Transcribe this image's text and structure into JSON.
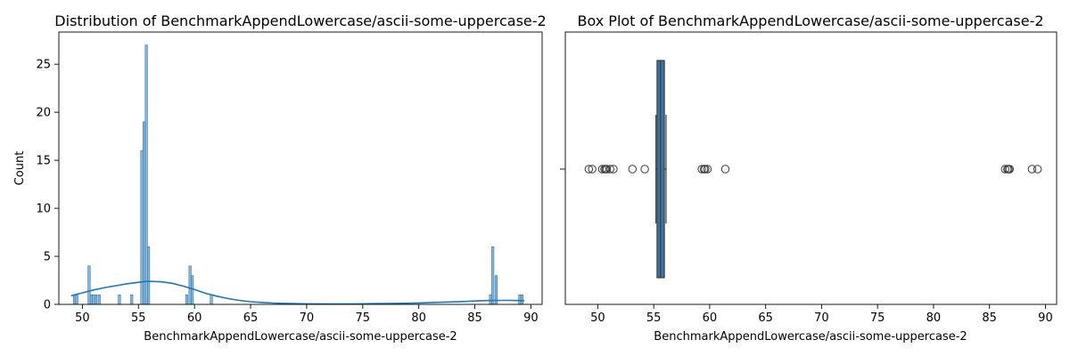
{
  "colors": {
    "hist_fill": "#80a9cc",
    "hist_edge": "#1f77b4",
    "kde_line": "#1f77b4",
    "box_fill": "#3a75a6",
    "box_edge": "#3b3b3b",
    "flier_edge": "#3b3b3b"
  },
  "chart_data": [
    {
      "type": "histogram",
      "title": "Distribution of BenchmarkAppendLowercase/ascii-some-uppercase-2",
      "xlabel": "BenchmarkAppendLowercase/ascii-some-uppercase-2",
      "ylabel": "Count",
      "xlim": [
        47.9,
        91.0
      ],
      "ylim": [
        0,
        28.35
      ],
      "xticks": [
        "50",
        "55",
        "60",
        "65",
        "70",
        "75",
        "80",
        "85",
        "90"
      ],
      "yticks": [
        "0",
        "5",
        "10",
        "15",
        "20",
        "25"
      ],
      "bin_width": 0.2,
      "bins": [
        {
          "x": 49.2,
          "count": 1
        },
        {
          "x": 49.4,
          "count": 1
        },
        {
          "x": 50.5,
          "count": 4
        },
        {
          "x": 50.7,
          "count": 1
        },
        {
          "x": 50.9,
          "count": 1
        },
        {
          "x": 51.1,
          "count": 1
        },
        {
          "x": 51.4,
          "count": 1
        },
        {
          "x": 53.2,
          "count": 1
        },
        {
          "x": 54.3,
          "count": 1
        },
        {
          "x": 55.2,
          "count": 16
        },
        {
          "x": 55.4,
          "count": 19
        },
        {
          "x": 55.6,
          "count": 27
        },
        {
          "x": 55.8,
          "count": 6
        },
        {
          "x": 59.2,
          "count": 1
        },
        {
          "x": 59.5,
          "count": 4
        },
        {
          "x": 59.7,
          "count": 3
        },
        {
          "x": 61.4,
          "count": 1
        },
        {
          "x": 86.3,
          "count": 1
        },
        {
          "x": 86.5,
          "count": 6
        },
        {
          "x": 86.8,
          "count": 3
        },
        {
          "x": 88.9,
          "count": 1
        },
        {
          "x": 89.1,
          "count": 1
        }
      ],
      "kde": {
        "x": [
          49.0,
          50,
          51,
          52,
          53,
          54,
          55,
          55.8,
          57,
          58,
          59,
          60,
          61,
          62,
          63,
          64,
          65,
          66,
          67,
          68,
          70,
          72,
          74,
          76,
          78,
          80,
          82,
          84,
          85,
          86,
          87,
          88,
          89,
          89.4
        ],
        "y": [
          0.9,
          1.2,
          1.5,
          1.75,
          1.95,
          2.15,
          2.3,
          2.4,
          2.35,
          2.2,
          1.9,
          1.55,
          1.15,
          0.85,
          0.6,
          0.42,
          0.28,
          0.2,
          0.14,
          0.1,
          0.06,
          0.05,
          0.05,
          0.07,
          0.1,
          0.15,
          0.22,
          0.3,
          0.35,
          0.4,
          0.42,
          0.42,
          0.4,
          0.38
        ]
      }
    },
    {
      "type": "box",
      "title": "Box Plot of BenchmarkAppendLowercase/ascii-some-uppercase-2",
      "xlabel": "BenchmarkAppendLowercase/ascii-some-uppercase-2",
      "ylabel": "",
      "xlim": [
        47.1,
        91.0
      ],
      "xticks": [
        "50",
        "55",
        "60",
        "65",
        "70",
        "75",
        "80",
        "85",
        "90"
      ],
      "box": {
        "q1": 55.3,
        "median": 55.6,
        "q3": 55.95,
        "whisker_low": 55.2,
        "whisker_high": 56.1
      },
      "fliers": [
        49.2,
        49.5,
        50.4,
        50.6,
        50.7,
        50.8,
        51.1,
        51.4,
        53.1,
        54.2,
        59.3,
        59.5,
        59.6,
        59.8,
        61.4,
        86.4,
        86.6,
        86.7,
        86.8,
        88.8,
        89.3
      ]
    }
  ]
}
